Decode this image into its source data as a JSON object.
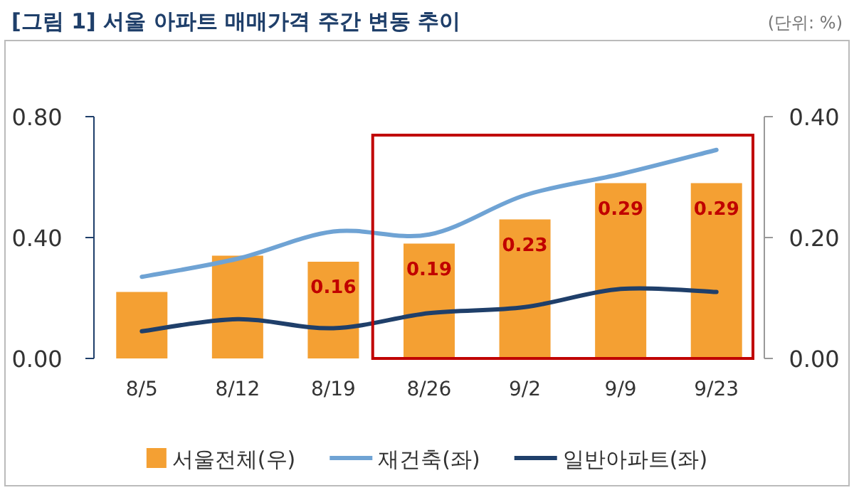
{
  "chart_data": {
    "type": "bar",
    "title": "[그림 1] 서울 아파트 매매가격 주간 변동 추이",
    "annotations": [
      "(단위: %)"
    ],
    "categories": [
      "8/5",
      "8/12",
      "8/19",
      "8/26",
      "9/2",
      "9/9",
      "9/23"
    ],
    "series": [
      {
        "name": "서울전체(우)",
        "axis": "y2",
        "color": "#f4a033",
        "values": [
          0.11,
          0.17,
          0.16,
          0.19,
          0.23,
          0.29,
          0.29
        ],
        "value_labels": [
          null,
          null,
          "0.16",
          "0.19",
          "0.23",
          "0.29",
          "0.29"
        ]
      },
      {
        "name": "재건축(좌)",
        "type": "line",
        "color": "#6fa3d4",
        "values": [
          0.27,
          0.33,
          0.42,
          0.41,
          0.54,
          0.61,
          0.69
        ]
      },
      {
        "name": "일반아파트(좌)",
        "type": "line",
        "color": "#1f3f6a",
        "values": [
          0.09,
          0.13,
          0.1,
          0.15,
          0.17,
          0.23,
          0.22
        ]
      }
    ],
    "ylim": [
      0,
      0.8
    ],
    "yticks": [
      {
        "value": 0,
        "label": "0.00"
      },
      {
        "value": 0.4,
        "label": "0.40"
      },
      {
        "value": 0.8,
        "label": "0.80"
      }
    ],
    "y2lim": [
      0,
      0.4
    ],
    "y2ticks": [
      {
        "value": 0,
        "label": "0.00"
      },
      {
        "value": 0.2,
        "label": "0.20"
      },
      {
        "value": 0.4,
        "label": "0.40"
      }
    ],
    "grid": false,
    "legend": "bottom",
    "marker": "none",
    "line_style": "solid"
  }
}
